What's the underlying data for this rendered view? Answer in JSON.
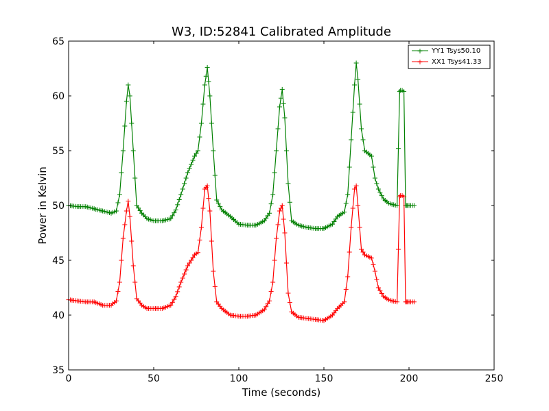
{
  "chart_data": {
    "type": "line",
    "title": "W3, ID:52841 Calibrated Amplitude",
    "xlabel": "Time (seconds)",
    "ylabel": "Power in Kelvin",
    "xlim": [
      0,
      250
    ],
    "ylim": [
      35,
      65
    ],
    "xticks": [
      0,
      50,
      100,
      150,
      200,
      250
    ],
    "yticks": [
      35,
      40,
      45,
      50,
      55,
      60,
      65
    ],
    "xtick_labels": [
      "0",
      "50",
      "100",
      "150",
      "200",
      "250"
    ],
    "ytick_labels": [
      "35",
      "40",
      "45",
      "50",
      "55",
      "60",
      "65"
    ],
    "grid": false,
    "legend_position": "top-right",
    "marker": "+",
    "series": [
      {
        "name": "YY1 Tsys50.10",
        "color": "#008000",
        "x": [
          0,
          5,
          10,
          15,
          20,
          25,
          28,
          30,
          32,
          34,
          35,
          36,
          38,
          40,
          43,
          46,
          50,
          55,
          60,
          63,
          66,
          70,
          74,
          76,
          78,
          80,
          81.5,
          83,
          85,
          87,
          90,
          95,
          100,
          105,
          110,
          115,
          118,
          120,
          122,
          124,
          125.5,
          127,
          129,
          131,
          135,
          140,
          145,
          150,
          155,
          158,
          162,
          164,
          166,
          168,
          169,
          170,
          172,
          174,
          178,
          180,
          182,
          185,
          188,
          190,
          193,
          194.5,
          195,
          196,
          197,
          198,
          198.5,
          199,
          201,
          203
        ],
        "y": [
          50.0,
          49.9,
          49.9,
          49.7,
          49.5,
          49.3,
          49.5,
          51.0,
          55.0,
          59.5,
          61.0,
          60.0,
          55.0,
          50.0,
          49.3,
          48.8,
          48.6,
          48.6,
          48.8,
          49.6,
          51.0,
          53.0,
          54.5,
          55.0,
          57.5,
          61.0,
          62.6,
          60.0,
          55.0,
          50.5,
          49.6,
          49.0,
          48.3,
          48.2,
          48.2,
          48.6,
          49.3,
          51.0,
          55.0,
          59.0,
          60.6,
          58.0,
          52.0,
          48.6,
          48.2,
          48.0,
          47.9,
          47.9,
          48.3,
          49.0,
          49.4,
          51.0,
          56.0,
          61.0,
          63.0,
          61.5,
          57.0,
          55.0,
          54.5,
          52.5,
          51.5,
          50.6,
          50.2,
          50.1,
          50.0,
          60.4,
          60.5,
          60.5,
          60.4,
          50.0,
          50.0,
          50.0,
          50.0,
          50.0
        ]
      },
      {
        "name": "XX1 Tsys41.33",
        "color": "#ff0000",
        "x": [
          0,
          5,
          10,
          15,
          20,
          25,
          28,
          30,
          32,
          34,
          35,
          36,
          38,
          40,
          43,
          46,
          50,
          55,
          60,
          63,
          66,
          70,
          74,
          76,
          78,
          80,
          81.5,
          83,
          85,
          87,
          90,
          95,
          100,
          105,
          110,
          115,
          118,
          120,
          122,
          124,
          125.5,
          127,
          129,
          131,
          135,
          140,
          145,
          150,
          155,
          158,
          162,
          164,
          166,
          168,
          169,
          170,
          172,
          174,
          178,
          180,
          182,
          185,
          188,
          190,
          193,
          194.5,
          195,
          196,
          197,
          198,
          198.5,
          199,
          201,
          203
        ],
        "y": [
          41.4,
          41.3,
          41.2,
          41.2,
          40.9,
          40.9,
          41.3,
          43.0,
          47.0,
          49.5,
          50.4,
          49.0,
          44.5,
          41.5,
          40.9,
          40.6,
          40.6,
          40.6,
          40.9,
          41.7,
          43.0,
          44.5,
          45.5,
          45.7,
          48.0,
          51.5,
          51.8,
          49.5,
          44.0,
          41.2,
          40.6,
          40.0,
          39.9,
          39.9,
          40.0,
          40.5,
          41.3,
          43.0,
          47.0,
          49.5,
          50.0,
          47.5,
          42.0,
          40.3,
          39.8,
          39.7,
          39.6,
          39.5,
          40.0,
          40.6,
          41.2,
          43.5,
          48.0,
          51.5,
          51.8,
          50.0,
          46.0,
          45.5,
          45.2,
          44.0,
          42.5,
          41.7,
          41.4,
          41.3,
          41.2,
          50.8,
          50.9,
          50.9,
          50.8,
          41.2,
          41.2,
          41.2,
          41.2,
          41.2
        ]
      }
    ]
  }
}
